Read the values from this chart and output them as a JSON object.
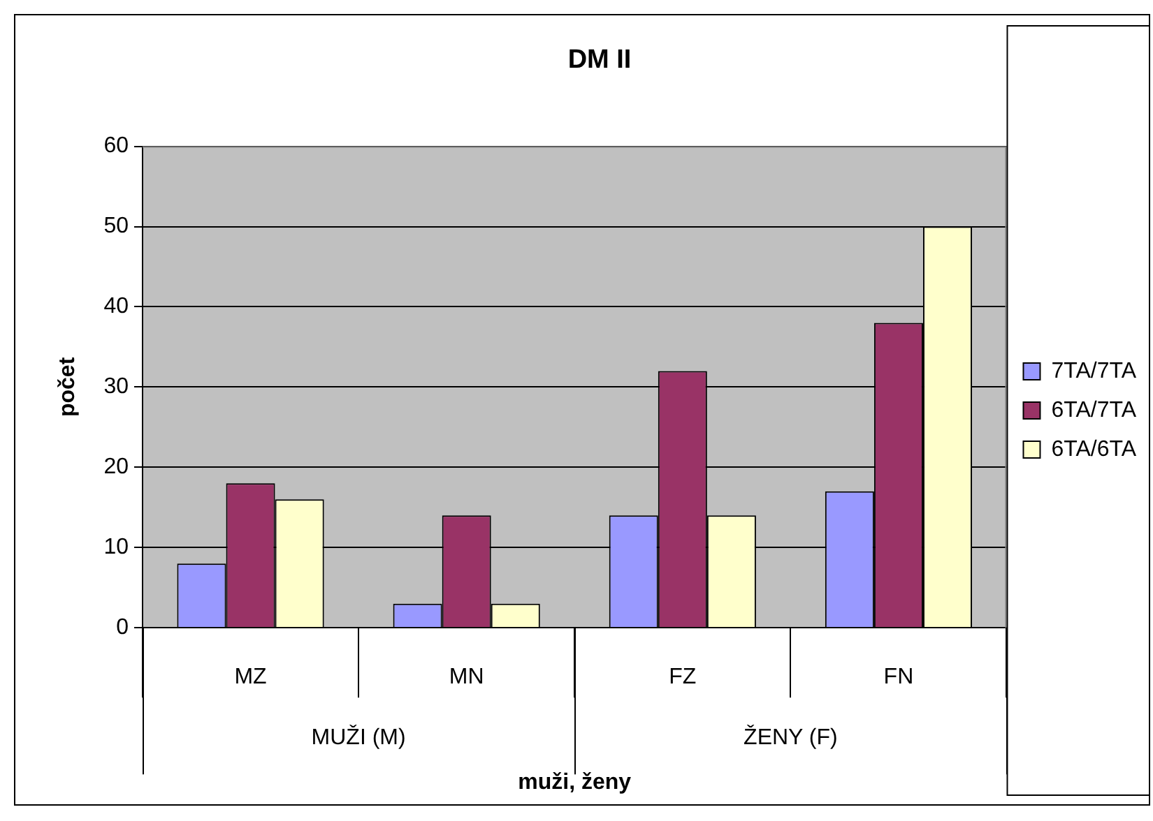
{
  "chart_data": {
    "type": "bar",
    "title": "DM II",
    "xlabel": "muži, ženy",
    "ylabel": "počet",
    "categories": [
      "MZ",
      "MN",
      "FZ",
      "FN"
    ],
    "annotations": [
      "MUŽI (M)",
      "ŽENY (F)"
    ],
    "series": [
      {
        "name": "7TA/7TA",
        "color": "#9999ff",
        "values": [
          8,
          3,
          14,
          17
        ]
      },
      {
        "name": "6TA/7TA",
        "color": "#993366",
        "values": [
          18,
          14,
          32,
          38
        ]
      },
      {
        "name": "6TA/6TA",
        "color": "#ffffcc",
        "values": [
          16,
          3,
          14,
          50
        ]
      }
    ],
    "ylim": [
      0,
      60
    ],
    "yticks": [
      0,
      10,
      20,
      30,
      40,
      50,
      60
    ],
    "grid": "y",
    "legend": "right"
  }
}
